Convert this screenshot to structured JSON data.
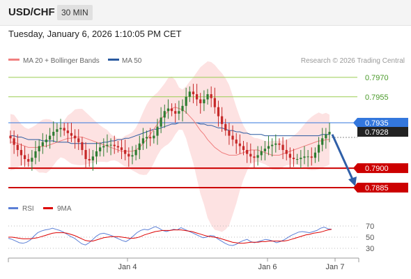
{
  "header": {
    "symbol": "USD/CHF",
    "timeframe": "30 MIN"
  },
  "datetime": "Tuesday, January 6, 2026 1:10:05 PM CET",
  "legend": {
    "ma20_label": "MA 20 + Bollinger Bands",
    "ma50_label": "MA 50",
    "copyright": "Research © 2026 Trading Central"
  },
  "rsi_legend": {
    "rsi_label": "RSI",
    "ma_label": "9MA"
  },
  "colors": {
    "ma20": "#f08080",
    "ma50": "#2a5aa0",
    "bollinger_fill": "#fde2e2",
    "resistance": "#9acd50",
    "support": "#cc0000",
    "pivot": "#3377dd",
    "candle_up": "#2e7d32",
    "candle_down": "#c62828",
    "rsi": "#5b7fd6",
    "rsi_ma": "#dd0000",
    "arrow": "#2f5fa8"
  },
  "chart_data": [
    {
      "type": "candlestick",
      "title": "USD/CHF",
      "x_ticks": [
        "Jan 4",
        "Jan 6",
        "Jan 7"
      ],
      "ylim": [
        0.7878,
        0.7978
      ],
      "levels": [
        {
          "value": "0.7970",
          "kind": "resistance"
        },
        {
          "value": "0.7955",
          "kind": "resistance"
        },
        {
          "value": "0.7935",
          "kind": "pivot"
        },
        {
          "value": "0.7900",
          "kind": "support"
        },
        {
          "value": "0.7885",
          "kind": "support"
        }
      ],
      "last_price": "0.7928",
      "closes": [
        0.7923,
        0.7918,
        0.7914,
        0.791,
        0.7907,
        0.7905,
        0.7908,
        0.7913,
        0.7917,
        0.792,
        0.7922,
        0.7925,
        0.7928,
        0.793,
        0.7931,
        0.7929,
        0.7927,
        0.7925,
        0.7923,
        0.792,
        0.7914,
        0.7907,
        0.7906,
        0.7909,
        0.7913,
        0.7916,
        0.7917,
        0.7918,
        0.7918,
        0.7917,
        0.7916,
        0.7914,
        0.7911,
        0.7909,
        0.791,
        0.7914,
        0.7919,
        0.7923,
        0.7924,
        0.7923,
        0.7925,
        0.7932,
        0.7939,
        0.7944,
        0.7946,
        0.7944,
        0.7942,
        0.7944,
        0.7948,
        0.7955,
        0.7959,
        0.7957,
        0.7953,
        0.795,
        0.7953,
        0.7957,
        0.7954,
        0.7947,
        0.794,
        0.7934,
        0.7929,
        0.7925,
        0.7922,
        0.7919,
        0.7917,
        0.7914,
        0.7911,
        0.7909,
        0.7908,
        0.791,
        0.7913,
        0.7915,
        0.7917,
        0.7918,
        0.7919,
        0.7918,
        0.7914,
        0.7911,
        0.7908,
        0.7907,
        0.7907,
        0.7908,
        0.7909,
        0.7909,
        0.7908,
        0.7912,
        0.7918,
        0.7923,
        0.7926,
        0.7928
      ],
      "ma20": [
        0.792,
        0.792,
        0.7919,
        0.7918,
        0.7917,
        0.7916,
        0.7916,
        0.7916,
        0.7916,
        0.7917,
        0.7917,
        0.7918,
        0.7919,
        0.792,
        0.7921,
        0.7922,
        0.7923,
        0.7923,
        0.7924,
        0.7924,
        0.7924,
        0.7923,
        0.7922,
        0.7921,
        0.792,
        0.7919,
        0.7918,
        0.7917,
        0.7916,
        0.7915,
        0.7914,
        0.7913,
        0.7913,
        0.7913,
        0.7913,
        0.7914,
        0.7916,
        0.7919,
        0.7922,
        0.7926,
        0.793,
        0.7934,
        0.7938,
        0.7941,
        0.7944,
        0.7946,
        0.7947,
        0.7946,
        0.7945,
        0.7943,
        0.794,
        0.7937,
        0.7933,
        0.7929,
        0.7926,
        0.7922,
        0.7919,
        0.7916,
        0.7914,
        0.7912,
        0.7911,
        0.791,
        0.791,
        0.791,
        0.7911,
        0.7912,
        0.7913,
        0.7914,
        0.7914,
        0.7914,
        0.7913,
        0.7912,
        0.7911,
        0.791,
        0.791,
        0.791,
        0.7911,
        0.7912,
        0.7913,
        0.7914,
        0.7915,
        0.7916,
        0.7917,
        0.7918,
        0.7919,
        0.792,
        0.7921,
        0.7921,
        0.7922,
        0.7922
      ],
      "ma50": [
        0.7925,
        0.7925,
        0.7924,
        0.7924,
        0.7923,
        0.7922,
        0.7922,
        0.7922,
        0.7922,
        0.7921,
        0.7921,
        0.7921,
        0.7921,
        0.792,
        0.792,
        0.792,
        0.792,
        0.7919,
        0.7919,
        0.7919,
        0.7919,
        0.7919,
        0.7919,
        0.7919,
        0.7919,
        0.7919,
        0.792,
        0.792,
        0.7921,
        0.7921,
        0.7922,
        0.7922,
        0.7923,
        0.7923,
        0.7924,
        0.7925,
        0.7926,
        0.7927,
        0.7928,
        0.7929,
        0.793,
        0.793,
        0.7931,
        0.7932,
        0.7933,
        0.7934,
        0.7934,
        0.7935,
        0.7935,
        0.7935,
        0.7935,
        0.7935,
        0.7935,
        0.7934,
        0.7934,
        0.7933,
        0.7933,
        0.7932,
        0.7931,
        0.7931,
        0.793,
        0.7929,
        0.7929,
        0.7928,
        0.7928,
        0.7927,
        0.7927,
        0.7926,
        0.7926,
        0.7926,
        0.7926,
        0.7925,
        0.7925,
        0.7925,
        0.7925,
        0.7925,
        0.7925,
        0.7925,
        0.7925,
        0.7925,
        0.7925,
        0.7925,
        0.7925,
        0.7925,
        0.7925,
        0.7925,
        0.7925,
        0.7926,
        0.7926,
        0.7926
      ]
    },
    {
      "type": "line",
      "title": "RSI",
      "ylim": [
        20,
        80
      ],
      "y_ticks": [
        "70",
        "50",
        "30"
      ],
      "rsi": [
        48,
        46,
        43,
        40,
        39,
        41,
        45,
        52,
        58,
        61,
        63,
        64,
        66,
        64,
        62,
        59,
        55,
        51,
        48,
        43,
        38,
        36,
        40,
        46,
        52,
        56,
        57,
        55,
        53,
        50,
        47,
        44,
        42,
        46,
        52,
        58,
        62,
        64,
        63,
        66,
        69,
        66,
        62,
        60,
        62,
        64,
        63,
        67,
        64,
        61,
        58,
        55,
        52,
        49,
        50,
        53,
        52,
        47,
        43,
        39,
        36,
        35,
        37,
        41,
        44,
        46,
        42,
        40,
        42,
        44,
        46,
        45,
        43,
        40,
        42,
        45,
        49,
        53,
        56,
        59,
        60,
        59,
        58,
        60,
        62,
        66,
        68,
        65,
        64
      ],
      "rsi_ma": [
        50,
        50,
        49,
        48,
        47,
        47,
        47,
        48,
        49,
        51,
        53,
        55,
        57,
        58,
        58,
        58,
        57,
        55,
        53,
        50,
        47,
        44,
        43,
        43,
        45,
        47,
        49,
        50,
        51,
        51,
        51,
        50,
        49,
        48,
        48,
        49,
        51,
        54,
        56,
        58,
        60,
        61,
        62,
        62,
        62,
        63,
        63,
        63,
        62,
        61,
        60,
        58,
        56,
        54,
        52,
        51,
        50,
        49,
        47,
        45,
        43,
        41,
        40,
        39,
        39,
        40,
        41,
        41,
        41,
        42,
        42,
        43,
        43,
        43,
        43,
        43,
        44,
        46,
        48,
        50,
        52,
        54,
        55,
        57,
        58,
        59,
        61,
        63,
        64
      ]
    }
  ]
}
